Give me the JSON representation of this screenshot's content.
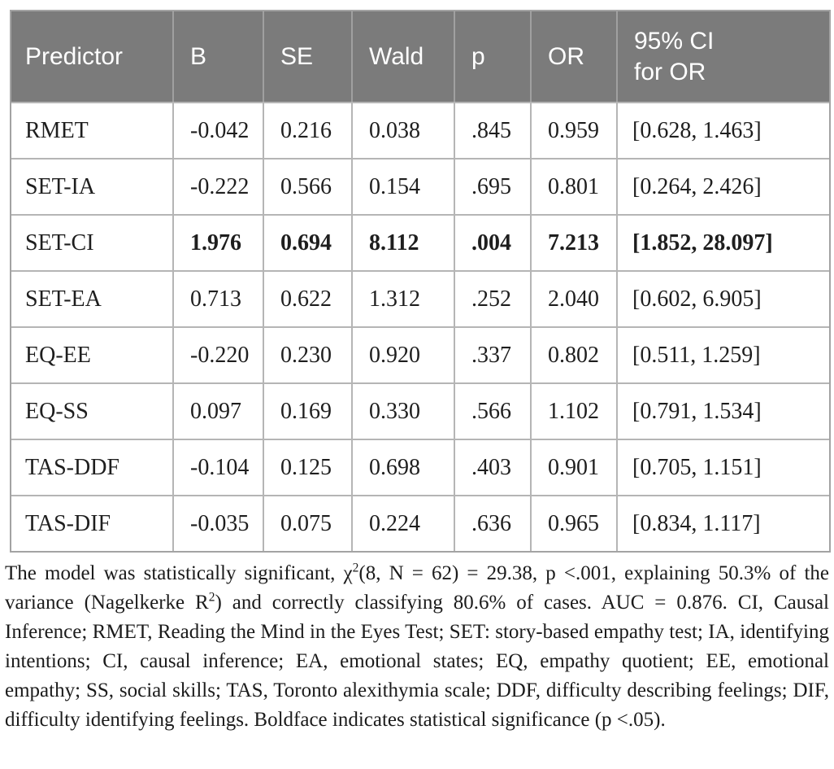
{
  "colors": {
    "header_bg": "#7b7b7b",
    "header_text": "#ffffff"
  },
  "table": {
    "column_keys": [
      "predictor",
      "b",
      "se",
      "wald",
      "p",
      "or",
      "ci"
    ],
    "columns": [
      "Predictor",
      "B",
      "SE",
      "Wald",
      "p",
      "OR",
      "95% CI\nfor OR"
    ],
    "rows": [
      {
        "cells": [
          "RMET",
          "-0.042",
          "0.216",
          "0.038",
          ".845",
          "0.959",
          "[0.628, 1.463]"
        ],
        "bold": false
      },
      {
        "cells": [
          "SET-IA",
          "-0.222",
          "0.566",
          "0.154",
          ".695",
          "0.801",
          "[0.264, 2.426]"
        ],
        "bold": false
      },
      {
        "cells": [
          "SET-CI",
          "1.976",
          "0.694",
          "8.112",
          ".004",
          "7.213",
          "[1.852, 28.097]"
        ],
        "bold": true
      },
      {
        "cells": [
          "SET-EA",
          "0.713",
          "0.622",
          "1.312",
          ".252",
          "2.040",
          "[0.602, 6.905]"
        ],
        "bold": false
      },
      {
        "cells": [
          "EQ-EE",
          "-0.220",
          "0.230",
          "0.920",
          ".337",
          "0.802",
          "[0.511, 1.259]"
        ],
        "bold": false
      },
      {
        "cells": [
          "EQ-SS",
          "0.097",
          "0.169",
          "0.330",
          ".566",
          "1.102",
          "[0.791, 1.534]"
        ],
        "bold": false
      },
      {
        "cells": [
          "TAS-DDF",
          "-0.104",
          "0.125",
          "0.698",
          ".403",
          "0.901",
          "[0.705, 1.151]"
        ],
        "bold": false
      },
      {
        "cells": [
          "TAS-DIF",
          "-0.035",
          "0.075",
          "0.224",
          ".636",
          "0.965",
          "[0.834, 1.117]"
        ],
        "bold": false
      }
    ]
  },
  "footnote": {
    "part1": "The model was statistically significant, χ",
    "sup1": "2",
    "part2": "(8, N = 62) = 29.38, p <.001, explaining 50.3% of the variance (Nagelkerke R",
    "sup2": "2",
    "part3": ") and correctly classifying 80.6% of cases. AUC = 0.876. CI, Causal Inference; RMET, Reading the Mind in the Eyes Test; SET: story-based empathy test; IA, identifying intentions; CI, causal inference; EA, emotional states; EQ, empathy quotient; EE, emotional empathy; SS, social skills; TAS, Toronto alexithymia scale; DDF, difficulty describing feelings; DIF, difficulty identifying feelings. Boldface indicates statistical significance (p <.05)."
  }
}
